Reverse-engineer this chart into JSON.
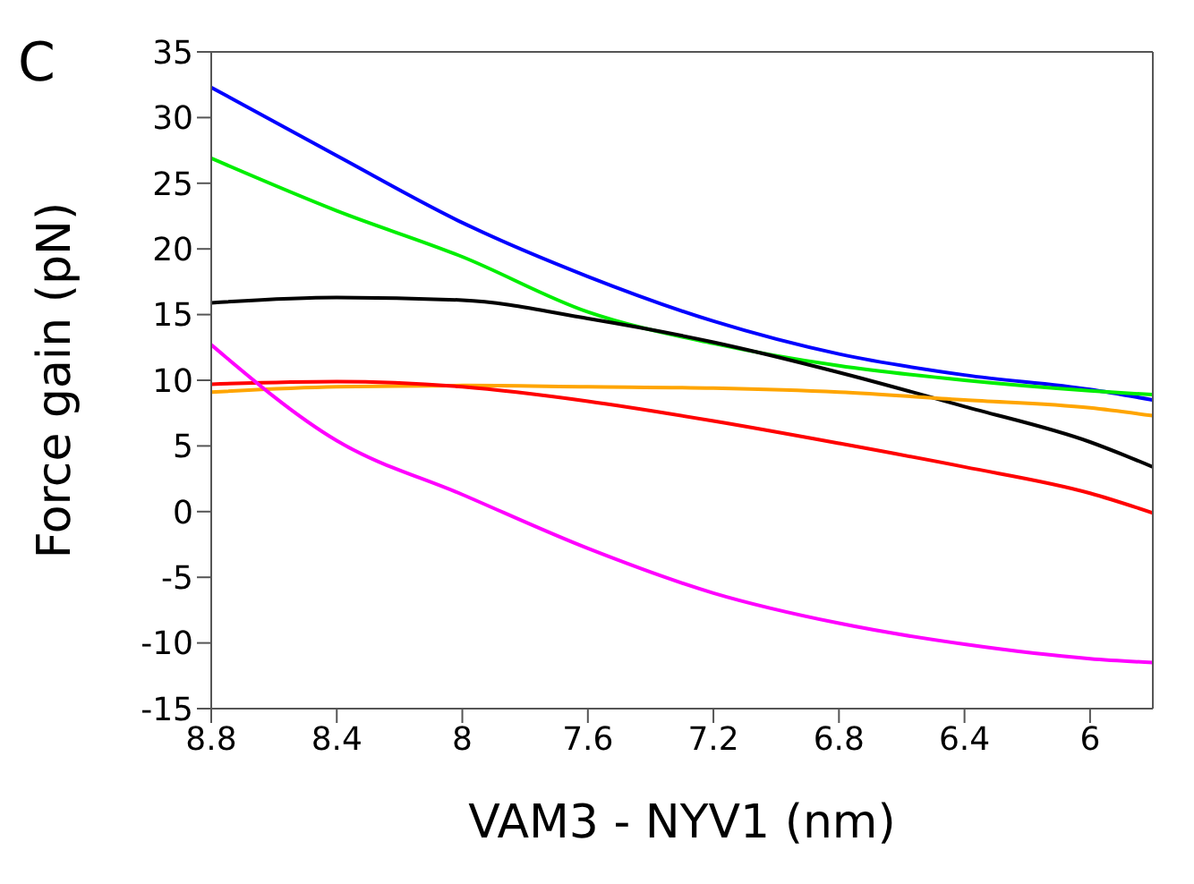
{
  "chart_data": {
    "type": "line",
    "title": "C",
    "xlabel": "VAM3 - NYV1 (nm)",
    "ylabel": "Force gain (pN)",
    "x": [
      8.8,
      8.4,
      8.0,
      7.6,
      7.2,
      6.8,
      6.4,
      6.0,
      5.8
    ],
    "xlim": [
      8.8,
      5.8
    ],
    "xticks": [
      8.8,
      8.4,
      8,
      7.6,
      7.2,
      6.8,
      6.4,
      6
    ],
    "ylim": [
      -15,
      35
    ],
    "yticks": [
      -15,
      -10,
      -5,
      0,
      5,
      10,
      15,
      20,
      25,
      30,
      35
    ],
    "grid": false,
    "legend": false,
    "marker": "none",
    "line_style": "solid",
    "series": [
      {
        "color": "#0000ff",
        "values": [
          32.3,
          27.1,
          22.0,
          17.9,
          14.5,
          12.0,
          10.4,
          9.3,
          8.5
        ]
      },
      {
        "color": "#00ee00",
        "values": [
          26.9,
          22.9,
          19.4,
          15.2,
          12.8,
          11.1,
          10.0,
          9.2,
          8.9
        ]
      },
      {
        "color": "#000000",
        "values": [
          15.9,
          16.3,
          16.1,
          14.7,
          12.9,
          10.6,
          8.0,
          5.3,
          3.4
        ]
      },
      {
        "color": "#ffa500",
        "values": [
          9.1,
          9.5,
          9.6,
          9.5,
          9.4,
          9.1,
          8.5,
          7.9,
          7.3
        ]
      },
      {
        "color": "#ff0000",
        "values": [
          9.7,
          9.9,
          9.5,
          8.4,
          6.9,
          5.2,
          3.4,
          1.4,
          -0.1
        ]
      },
      {
        "color": "#ff00ff",
        "values": [
          12.7,
          5.4,
          1.3,
          -2.8,
          -6.2,
          -8.5,
          -10.1,
          -11.2,
          -11.5
        ]
      }
    ]
  }
}
